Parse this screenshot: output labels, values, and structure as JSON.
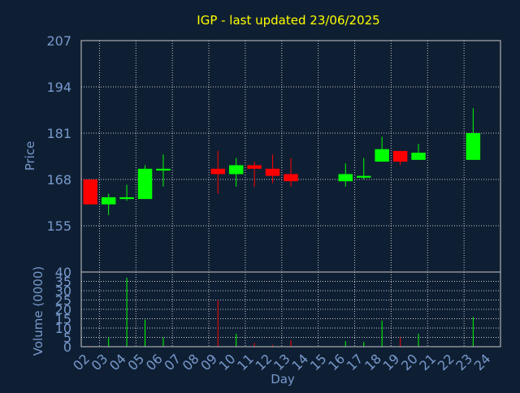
{
  "colors": {
    "background": "#0f1f33",
    "title": "#ffff00",
    "axis_text": "#7799cc",
    "grid": "#c8c8c8",
    "up": "#00ff00",
    "down": "#ff0000",
    "frame": "#c8c8c8"
  },
  "chart_data": [
    {
      "type": "candlestick",
      "title": "IGP - last updated 23/06/2025",
      "xlabel": "",
      "ylabel": "Price",
      "ylim": [
        142,
        207
      ],
      "yticks": [
        155,
        168,
        181,
        194,
        207
      ],
      "grid": true,
      "categories": [
        "02",
        "03",
        "04",
        "05",
        "06",
        "07",
        "08",
        "09",
        "10",
        "11",
        "12",
        "13",
        "14",
        "15",
        "16",
        "17",
        "18",
        "19",
        "20",
        "21",
        "22",
        "23",
        "24"
      ],
      "candles": [
        {
          "day": "02",
          "open": 168.0,
          "high": 168.0,
          "low": 161.0,
          "close": 161.0
        },
        {
          "day": "03",
          "open": 161.0,
          "high": 164.0,
          "low": 158.0,
          "close": 163.0
        },
        {
          "day": "04",
          "open": 162.5,
          "high": 166.5,
          "low": 162.0,
          "close": 163.0
        },
        {
          "day": "05",
          "open": 162.5,
          "high": 172.0,
          "low": 162.5,
          "close": 171.0
        },
        {
          "day": "06",
          "open": 170.5,
          "high": 175.0,
          "low": 166.0,
          "close": 171.0
        },
        {
          "day": "09",
          "open": 171.0,
          "high": 176.0,
          "low": 164.0,
          "close": 169.5
        },
        {
          "day": "10",
          "open": 169.5,
          "high": 174.0,
          "low": 166.0,
          "close": 172.0
        },
        {
          "day": "11",
          "open": 172.0,
          "high": 173.0,
          "low": 166.0,
          "close": 171.0
        },
        {
          "day": "12",
          "open": 171.0,
          "high": 175.0,
          "low": 167.0,
          "close": 169.0
        },
        {
          "day": "13",
          "open": 169.5,
          "high": 174.0,
          "low": 166.0,
          "close": 167.5
        },
        {
          "day": "16",
          "open": 167.5,
          "high": 172.5,
          "low": 166.0,
          "close": 169.5
        },
        {
          "day": "17",
          "open": 168.5,
          "high": 174.0,
          "low": 168.0,
          "close": 169.0
        },
        {
          "day": "18",
          "open": 173.0,
          "high": 180.0,
          "low": 173.0,
          "close": 176.5
        },
        {
          "day": "19",
          "open": 176.0,
          "high": 176.0,
          "low": 172.0,
          "close": 173.0
        },
        {
          "day": "20",
          "open": 173.5,
          "high": 178.0,
          "low": 173.5,
          "close": 175.5
        },
        {
          "day": "23",
          "open": 173.5,
          "high": 188.0,
          "low": 173.5,
          "close": 181.0
        }
      ]
    },
    {
      "type": "bar",
      "title": "",
      "xlabel": "Day",
      "ylabel": "Volume (0000)",
      "ylim": [
        0,
        40
      ],
      "yticks": [
        0,
        5,
        10,
        15,
        20,
        25,
        30,
        35,
        40
      ],
      "grid": true,
      "categories": [
        "02",
        "03",
        "04",
        "05",
        "06",
        "07",
        "08",
        "09",
        "10",
        "11",
        "12",
        "13",
        "14",
        "15",
        "16",
        "17",
        "18",
        "19",
        "20",
        "21",
        "22",
        "23",
        "24"
      ],
      "bars": [
        {
          "day": "02",
          "value": 0.5,
          "direction": "down"
        },
        {
          "day": "03",
          "value": 5,
          "direction": "up"
        },
        {
          "day": "04",
          "value": 37,
          "direction": "up"
        },
        {
          "day": "05",
          "value": 14.5,
          "direction": "up"
        },
        {
          "day": "06",
          "value": 5,
          "direction": "up"
        },
        {
          "day": "09",
          "value": 25,
          "direction": "down"
        },
        {
          "day": "10",
          "value": 7,
          "direction": "up"
        },
        {
          "day": "11",
          "value": 2,
          "direction": "down"
        },
        {
          "day": "12",
          "value": 1,
          "direction": "down"
        },
        {
          "day": "13",
          "value": 3.5,
          "direction": "down"
        },
        {
          "day": "16",
          "value": 3,
          "direction": "up"
        },
        {
          "day": "17",
          "value": 2.5,
          "direction": "up"
        },
        {
          "day": "18",
          "value": 14,
          "direction": "up"
        },
        {
          "day": "19",
          "value": 5,
          "direction": "down"
        },
        {
          "day": "20",
          "value": 7,
          "direction": "up"
        },
        {
          "day": "23",
          "value": 16,
          "direction": "up"
        }
      ]
    }
  ]
}
